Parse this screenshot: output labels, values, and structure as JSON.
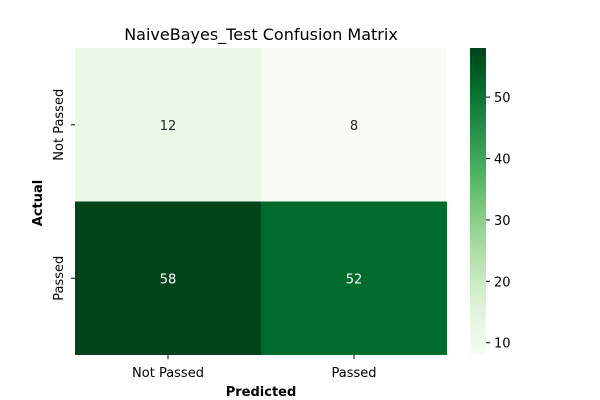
{
  "chart_data": {
    "type": "heatmap",
    "title": "NaiveBayes_Test Confusion Matrix",
    "xlabel": "Predicted",
    "ylabel": "Actual",
    "x_categories": [
      "Not Passed",
      "Passed"
    ],
    "y_categories": [
      "Not Passed",
      "Passed"
    ],
    "values": [
      [
        12,
        8
      ],
      [
        58,
        52
      ]
    ],
    "colormap": "Greens",
    "value_range": [
      8,
      58
    ],
    "colorbar_ticks": [
      10,
      20,
      30,
      40,
      50
    ],
    "grid": false
  }
}
